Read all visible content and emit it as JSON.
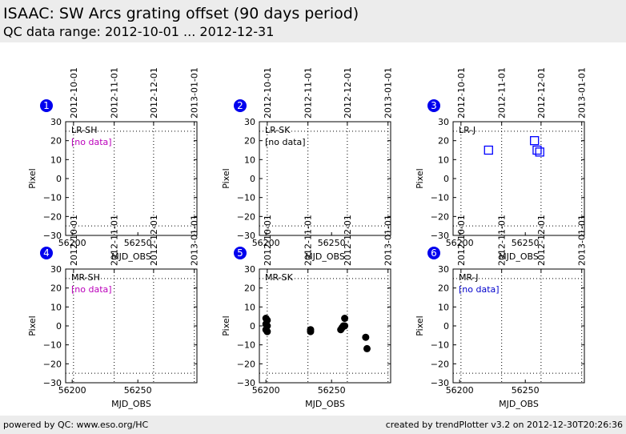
{
  "header": {
    "title": "ISAAC: SW Arcs grating offset (90 days period)",
    "subtitle": "QC data range: 2012-10-01 ... 2012-12-31"
  },
  "footer": {
    "left": "powered by QC: www.eso.org/HC",
    "right": "created by trendPlotter v3.2 on 2012-12-30T20:26:36"
  },
  "colors": {
    "background": "#ffffff",
    "header_band": "#ececec",
    "badge": "#0000ee",
    "no_data_magenta": "#bb00bb",
    "no_data_black": "#000000",
    "no_data_blue": "#0000cc",
    "lr_j_marker": "#0000ff",
    "mr_sk_marker": "#000000"
  },
  "chart_data": [
    {
      "type": "scatter",
      "panel": 1,
      "label": "LR-SH",
      "no_data_text": "[no data]",
      "no_data_color": "#bb00bb",
      "xlabel": "MJD_OBS",
      "ylabel": "Pixel",
      "xlim": [
        56195,
        56295
      ],
      "ylim": [
        -30,
        30
      ],
      "x_ticks": [
        56200,
        56250
      ],
      "y_ticks": [
        -30,
        -20,
        -10,
        0,
        10,
        20,
        30
      ],
      "date_ticks": [
        {
          "label": "2012-10-01",
          "mjd": 56201
        },
        {
          "label": "2012-11-01",
          "mjd": 56232
        },
        {
          "label": "2012-12-01",
          "mjd": 56262
        },
        {
          "label": "2013-01-01",
          "mjd": 56293
        }
      ],
      "ref_lines_y": [
        -25,
        25
      ],
      "grid": "dotted vertical at month starts",
      "marker": "square",
      "marker_color": "#0000ff",
      "points": []
    },
    {
      "type": "scatter",
      "panel": 2,
      "label": "LR-SK",
      "no_data_text": "[no data]",
      "no_data_color": "#000000",
      "xlabel": "MJD_OBS",
      "ylabel": "Pixel",
      "xlim": [
        56195,
        56295
      ],
      "ylim": [
        -30,
        30
      ],
      "x_ticks": [
        56200,
        56250
      ],
      "y_ticks": [
        -30,
        -20,
        -10,
        0,
        10,
        20,
        30
      ],
      "date_ticks": [
        {
          "label": "2012-10-01",
          "mjd": 56201
        },
        {
          "label": "2012-11-01",
          "mjd": 56232
        },
        {
          "label": "2012-12-01",
          "mjd": 56262
        },
        {
          "label": "2013-01-01",
          "mjd": 56293
        }
      ],
      "ref_lines_y": [
        -25,
        25
      ],
      "grid": "dotted vertical at month starts",
      "marker": "circle",
      "marker_color": "#000000",
      "points": []
    },
    {
      "type": "scatter",
      "panel": 3,
      "label": "LR-J",
      "no_data_text": "",
      "no_data_color": "#0000cc",
      "xlabel": "MJD_OBS",
      "ylabel": "Pixel",
      "xlim": [
        56195,
        56295
      ],
      "ylim": [
        -30,
        30
      ],
      "x_ticks": [
        56200,
        56250
      ],
      "y_ticks": [
        -30,
        -20,
        -10,
        0,
        10,
        20,
        30
      ],
      "date_ticks": [
        {
          "label": "2012-10-01",
          "mjd": 56201
        },
        {
          "label": "2012-11-01",
          "mjd": 56232
        },
        {
          "label": "2012-12-01",
          "mjd": 56262
        },
        {
          "label": "2013-01-01",
          "mjd": 56293
        }
      ],
      "ref_lines_y": [
        -25,
        25
      ],
      "grid": "dotted vertical at month starts",
      "marker": "square_open",
      "marker_color": "#0000ff",
      "points": [
        [
          56222,
          15
        ],
        [
          56257,
          20
        ],
        [
          56259,
          15
        ],
        [
          56261,
          14
        ]
      ]
    },
    {
      "type": "scatter",
      "panel": 4,
      "label": "MR-SH",
      "no_data_text": "[no data]",
      "no_data_color": "#bb00bb",
      "xlabel": "MJD_OBS",
      "ylabel": "Pixel",
      "xlim": [
        56195,
        56295
      ],
      "ylim": [
        -30,
        30
      ],
      "x_ticks": [
        56200,
        56250
      ],
      "y_ticks": [
        -30,
        -20,
        -10,
        0,
        10,
        20,
        30
      ],
      "date_ticks": [
        {
          "label": "2012-10-01",
          "mjd": 56201
        },
        {
          "label": "2012-11-01",
          "mjd": 56232
        },
        {
          "label": "2012-12-01",
          "mjd": 56262
        },
        {
          "label": "2013-01-01",
          "mjd": 56293
        }
      ],
      "ref_lines_y": [
        -25,
        25
      ],
      "grid": "dotted vertical at month starts",
      "marker": "square",
      "marker_color": "#0000ff",
      "points": []
    },
    {
      "type": "scatter",
      "panel": 5,
      "label": "MR-SK",
      "no_data_text": "",
      "no_data_color": "#000000",
      "xlabel": "MJD_OBS",
      "ylabel": "Pixel",
      "xlim": [
        56195,
        56295
      ],
      "ylim": [
        -30,
        30
      ],
      "x_ticks": [
        56200,
        56250
      ],
      "y_ticks": [
        -30,
        -20,
        -10,
        0,
        10,
        20,
        30
      ],
      "date_ticks": [
        {
          "label": "2012-10-01",
          "mjd": 56201
        },
        {
          "label": "2012-11-01",
          "mjd": 56232
        },
        {
          "label": "2012-12-01",
          "mjd": 56262
        },
        {
          "label": "2013-01-01",
          "mjd": 56293
        }
      ],
      "ref_lines_y": [
        -25,
        25
      ],
      "grid": "dotted vertical at month starts",
      "marker": "circle_filled",
      "marker_color": "#000000",
      "points": [
        [
          56200,
          4
        ],
        [
          56201,
          3
        ],
        [
          56200,
          1
        ],
        [
          56201,
          0
        ],
        [
          56200,
          -2
        ],
        [
          56201,
          -3
        ],
        [
          56234,
          -2
        ],
        [
          56234,
          -3
        ],
        [
          56257,
          -2
        ],
        [
          56258,
          -1
        ],
        [
          56259,
          0
        ],
        [
          56260,
          0
        ],
        [
          56260,
          4
        ],
        [
          56276,
          -6
        ],
        [
          56277,
          -12
        ]
      ]
    },
    {
      "type": "scatter",
      "panel": 6,
      "label": "MR-J",
      "no_data_text": "[no data]",
      "no_data_color": "#0000cc",
      "xlabel": "MJD_OBS",
      "ylabel": "Pixel",
      "xlim": [
        56195,
        56295
      ],
      "ylim": [
        -30,
        30
      ],
      "x_ticks": [
        56200,
        56250
      ],
      "y_ticks": [
        -30,
        -20,
        -10,
        0,
        10,
        20,
        30
      ],
      "date_ticks": [
        {
          "label": "2012-10-01",
          "mjd": 56201
        },
        {
          "label": "2012-11-01",
          "mjd": 56232
        },
        {
          "label": "2012-12-01",
          "mjd": 56262
        },
        {
          "label": "2013-01-01",
          "mjd": 56293
        }
      ],
      "ref_lines_y": [
        -25,
        25
      ],
      "grid": "dotted vertical at month starts",
      "marker": "square",
      "marker_color": "#0000ff",
      "points": []
    }
  ]
}
